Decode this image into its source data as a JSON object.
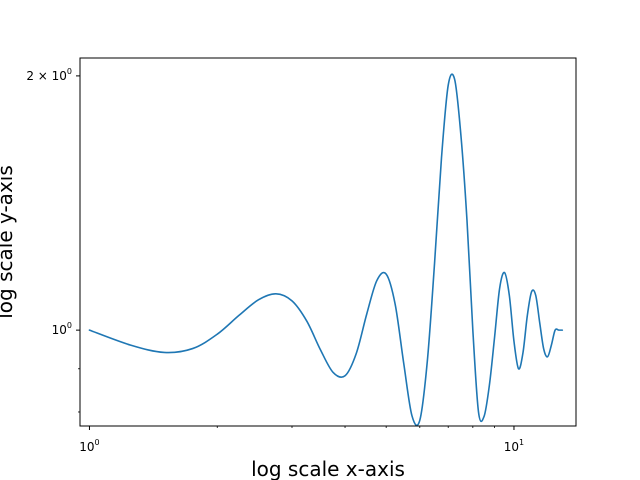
{
  "chart_data": {
    "type": "line",
    "title": "",
    "xlabel": "log scale x-axis",
    "ylabel": "log scale y-axis",
    "xscale": "log",
    "yscale": "log",
    "xlim": [
      0.95,
      14
    ],
    "ylim": [
      0.77,
      2.1
    ],
    "grid": false,
    "color": "#1f77b4",
    "x_tick_labels": [
      {
        "value": 1,
        "base": "10",
        "exp": "0"
      },
      {
        "value": 10,
        "base": "10",
        "exp": "1"
      }
    ],
    "y_tick_labels": [
      {
        "value": 1,
        "coef": "",
        "base": "10",
        "exp": "0"
      },
      {
        "value": 2,
        "coef": "2 × ",
        "base": "10",
        "exp": "0"
      }
    ],
    "series": [
      {
        "x": [
          1.0,
          1.25,
          1.5,
          1.75,
          2.0,
          2.25,
          2.5,
          2.75,
          3.0,
          3.25,
          3.5,
          3.75,
          4.0,
          4.25,
          4.5,
          4.75,
          5.0,
          5.25,
          5.5,
          5.75,
          6.0,
          6.25,
          6.5,
          6.75,
          7.0,
          7.25,
          7.5,
          7.75,
          8.0,
          8.25,
          8.5,
          8.75,
          9.0,
          9.25,
          9.5,
          9.75,
          10.0,
          10.25,
          10.5,
          10.75,
          11.0,
          11.25,
          11.5,
          11.75,
          12.0,
          12.25,
          12.5,
          12.75,
          13.0
        ],
        "y": [
          1.0,
          0.96,
          0.941,
          0.951,
          0.989,
          1.041,
          1.086,
          1.104,
          1.083,
          1.025,
          0.948,
          0.891,
          0.883,
          0.938,
          1.045,
          1.144,
          1.165,
          1.073,
          0.913,
          0.792,
          0.782,
          0.919,
          1.2,
          1.6,
          1.95,
          1.98,
          1.7,
          1.35,
          1.0,
          0.8,
          0.79,
          0.86,
          0.98,
          1.12,
          1.17,
          1.1,
          0.97,
          0.9,
          0.94,
          1.04,
          1.11,
          1.1,
          1.02,
          0.95,
          0.93,
          0.96,
          1.0,
          1.0,
          1.0
        ]
      }
    ]
  }
}
